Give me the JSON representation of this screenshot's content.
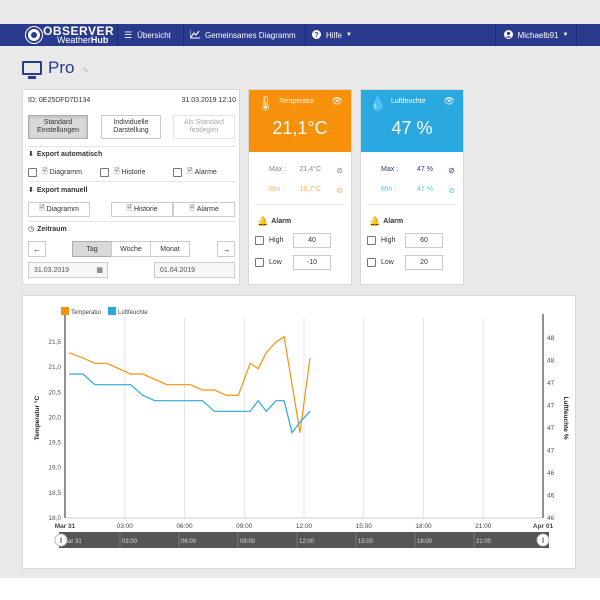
{
  "navbar": {
    "logo_title": "OBSERVER",
    "logo_sub_plain": "Weather",
    "logo_sub_bold": "Hub",
    "items": [
      {
        "label": "Übersicht",
        "icon": "list-icon"
      },
      {
        "label": "Gemeinsames Diagramm",
        "icon": "chart-icon"
      },
      {
        "label": "Hilfe",
        "icon": "help-icon"
      }
    ],
    "user": "Michaelb91"
  },
  "page": {
    "title": "Pro",
    "edit_hint": "✎"
  },
  "device": {
    "id": "ID: 0E25DFD7D134",
    "datetime": "31.03.2019  12:10"
  },
  "settings": {
    "standard_line1": "Standard",
    "standard_line2": "Einstellungen",
    "individual_line1": "Individuelle",
    "individual_line2": "Darstellung",
    "set_default_line1": "Als Standard",
    "set_default_line2": "festlegen"
  },
  "export_auto": {
    "label": "Export automatisch",
    "options": [
      {
        "label": "Diagramm",
        "checked": false
      },
      {
        "label": "Historie",
        "checked": false
      },
      {
        "label": "Alarme",
        "checked": false
      }
    ]
  },
  "export_manual": {
    "label": "Export manuell",
    "buttons": [
      "Diagramm",
      "Historie",
      "Alarme"
    ]
  },
  "timerange": {
    "label": "Zeitraum",
    "tabs": [
      "Tag",
      "Woche",
      "Monat"
    ],
    "active_tab": "Tag",
    "from": "31.03.2019",
    "to": "01.04.2019"
  },
  "sensors": [
    {
      "name": "Temperatur",
      "value": "21,1°C",
      "color": "#f7900a",
      "icon": "thermometer-icon",
      "max_label": "Max :",
      "max_value": "21,4°C",
      "min_label": "Min :",
      "min_value": "18,7°C",
      "alarm_label": "Alarm",
      "high_label": "High",
      "high_value": "40",
      "low_label": "Low",
      "low_value": "-10"
    },
    {
      "name": "Luftfeuchte",
      "value": "47 %",
      "color": "#2aa8e0",
      "icon": "droplet-icon",
      "max_label": "Max :",
      "max_value": "47 %",
      "min_label": "Min :",
      "min_value": "47 %",
      "alarm_label": "Alarm",
      "high_label": "High",
      "high_value": "60",
      "low_label": "Low",
      "low_value": "20"
    }
  ],
  "chart_data": {
    "type": "line",
    "legend": [
      "Temperatur",
      "Luftfeuchte"
    ],
    "legend_placement": "top-left",
    "ylabel_left": "Temperatur °C",
    "ylabel_right": "Luftfeuchte %",
    "left_ticks": [
      "21,5",
      "21,0",
      "20,5",
      "20,0",
      "19,5",
      "19,0",
      "18,5",
      "18,0"
    ],
    "right_ticks": [
      "48",
      "48",
      "47",
      "47",
      "47",
      "47",
      "46",
      "46",
      "46"
    ],
    "x_ticks": [
      "Mar 31",
      "03:00",
      "06:00",
      "09:00",
      "12:00",
      "15:00",
      "18:00",
      "21:00",
      "Apr 01"
    ],
    "navigator_ticks": [
      "Mar 31",
      "03:00",
      "06:00",
      "09:00",
      "12:00",
      "15:00",
      "18:00",
      "21:00"
    ],
    "ylim_left": [
      18.0,
      21.75
    ],
    "grid": true,
    "x_hours": [
      0.2,
      0.9,
      1.5,
      2.1,
      2.7,
      3.3,
      3.9,
      4.5,
      5.1,
      5.7,
      6.3,
      6.9,
      7.5,
      8.1,
      8.7,
      9.3,
      9.7,
      10.1,
      10.6,
      11.0,
      11.4,
      11.8,
      12.3
    ],
    "series": [
      {
        "name": "Temperatur",
        "color": "#f7900a",
        "values": [
          21.1,
          21.0,
          20.9,
          20.9,
          20.8,
          20.7,
          20.7,
          20.6,
          20.5,
          20.5,
          20.5,
          20.4,
          20.4,
          20.3,
          20.3,
          20.9,
          20.8,
          21.1,
          21.3,
          21.4,
          20.5,
          19.6,
          21.0
        ]
      },
      {
        "name": "Luftfeuchte",
        "color": "#2aa8e0",
        "values": [
          20.7,
          20.7,
          20.5,
          20.5,
          20.5,
          20.5,
          20.3,
          20.2,
          20.2,
          20.2,
          20.2,
          20.2,
          20.0,
          20.0,
          20.0,
          20.0,
          20.2,
          20.0,
          20.2,
          20.2,
          19.6,
          19.8,
          20.0
        ]
      }
    ]
  }
}
